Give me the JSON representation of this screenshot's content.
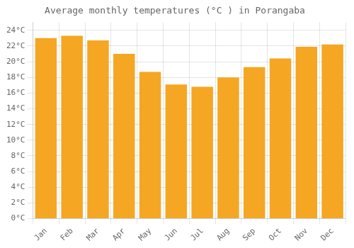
{
  "chart_data": {
    "type": "bar",
    "title": "Average monthly temperatures (°C ) in Porangaba",
    "categories": [
      "Jan",
      "Feb",
      "Mar",
      "Apr",
      "May",
      "Jun",
      "Jul",
      "Aug",
      "Sep",
      "Oct",
      "Nov",
      "Dec"
    ],
    "values": [
      23.0,
      23.3,
      22.7,
      21.0,
      18.7,
      17.1,
      16.8,
      18.0,
      19.3,
      20.4,
      21.9,
      22.2
    ],
    "color": "#F5A623",
    "ylim": [
      0,
      25
    ],
    "yticks": [
      {
        "value": 0,
        "label": "0°C"
      },
      {
        "value": 2,
        "label": "2°C"
      },
      {
        "value": 4,
        "label": "4°C"
      },
      {
        "value": 6,
        "label": "6°C"
      },
      {
        "value": 8,
        "label": "8°C"
      },
      {
        "value": 10,
        "label": "10°C"
      },
      {
        "value": 12,
        "label": "12°C"
      },
      {
        "value": 14,
        "label": "14°C"
      },
      {
        "value": 16,
        "label": "16°C"
      },
      {
        "value": 18,
        "label": "18°C"
      },
      {
        "value": 20,
        "label": "20°C"
      },
      {
        "value": 22,
        "label": "22°C"
      },
      {
        "value": 24,
        "label": "24°C"
      }
    ],
    "grid": true
  }
}
